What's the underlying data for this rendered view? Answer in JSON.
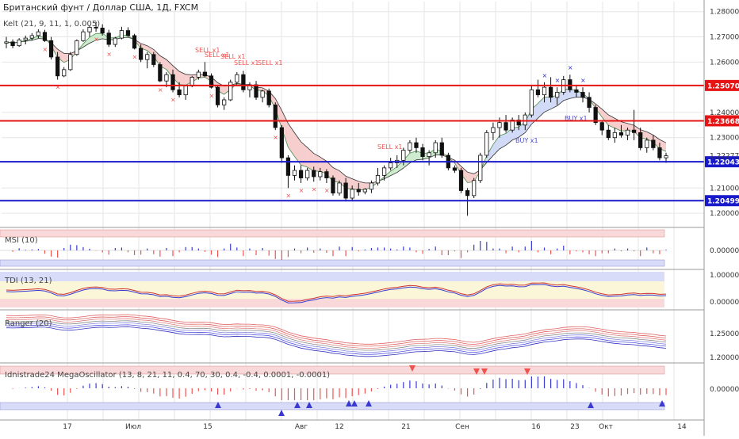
{
  "header": {
    "title": "Британский фунт / Доллар США, 1Д, FXCM",
    "subtitle": "Kelt (21, 9, 11, 1, 0.005)"
  },
  "colors": {
    "bg": "#ffffff",
    "up": "#26a69a",
    "down": "#ef5350",
    "candle": "#111111",
    "red_line": "#e51515",
    "blue_line": "#1919cc",
    "upper_band_fill": "#f4c6c6",
    "lower_band_fill": "#c7e8c7",
    "blue_fill": "#c9d4f4",
    "grid": "#e6e6e6"
  },
  "panes": {
    "msi": {
      "label": "MSI (10)",
      "ticks": [
        "0.00000"
      ]
    },
    "tdi": {
      "label": "TDI (13, 21)",
      "ticks": [
        "1.00000",
        "0.00000"
      ]
    },
    "ranger": {
      "label": "Ranger (20)",
      "ticks": [
        "1.25000",
        "1.20000"
      ]
    },
    "mega": {
      "label": "Idnistrade24 MegaOscillator (13, 8, 21, 11, 0.4, 70, 30, 0.4, -0.4, 0.0001, -0.0001)",
      "ticks": [
        "0.00000"
      ]
    }
  },
  "chart_data": {
    "type": "candlestick",
    "symbol": "GBPUSD",
    "timeframe": "1D",
    "ylim": [
      1.195,
      1.284
    ],
    "y_ticks": [
      1.28,
      1.27,
      1.26,
      1.24,
      1.23,
      1.21,
      1.2
    ],
    "x_ticks": [
      "17",
      "Июл",
      "15",
      "Авг",
      "12",
      "21",
      "Сен",
      "16",
      "23",
      "Окт",
      "14"
    ],
    "levels": [
      {
        "name": "resistance",
        "value": 1.2507,
        "label": "1.25070",
        "color": "red"
      },
      {
        "name": "resistance",
        "value": 1.23668,
        "label": "1.23668",
        "color": "red"
      },
      {
        "name": "support",
        "value": 1.22043,
        "label": "1.22043",
        "color": "blue"
      },
      {
        "name": "support",
        "value": 1.20499,
        "label": "1.20499",
        "color": "blue"
      }
    ],
    "last_price": {
      "value": 1.22277,
      "label": "1.22277"
    },
    "ohlc": [
      [
        1.2675,
        1.27,
        1.2655,
        1.268
      ],
      [
        1.268,
        1.269,
        1.2655,
        1.2665
      ],
      [
        1.2665,
        1.2695,
        1.266,
        1.2688
      ],
      [
        1.2688,
        1.2705,
        1.267,
        1.2695
      ],
      [
        1.2695,
        1.2715,
        1.2685,
        1.2705
      ],
      [
        1.2705,
        1.273,
        1.2695,
        1.272
      ],
      [
        1.2718,
        1.2728,
        1.268,
        1.2685
      ],
      [
        1.2685,
        1.27,
        1.261,
        1.262
      ],
      [
        1.262,
        1.264,
        1.253,
        1.2545
      ],
      [
        1.2545,
        1.258,
        1.254,
        1.257
      ],
      [
        1.257,
        1.264,
        1.2565,
        1.263
      ],
      [
        1.263,
        1.269,
        1.2625,
        1.2685
      ],
      [
        1.2685,
        1.273,
        1.268,
        1.272
      ],
      [
        1.272,
        1.2745,
        1.27,
        1.2738
      ],
      [
        1.2738,
        1.276,
        1.272,
        1.2735
      ],
      [
        1.2735,
        1.275,
        1.2705,
        1.2715
      ],
      [
        1.2715,
        1.2728,
        1.266,
        1.267
      ],
      [
        1.267,
        1.27,
        1.266,
        1.2695
      ],
      [
        1.2695,
        1.274,
        1.269,
        1.2725
      ],
      [
        1.2725,
        1.2738,
        1.27,
        1.2705
      ],
      [
        1.2705,
        1.2712,
        1.265,
        1.2655
      ],
      [
        1.2655,
        1.267,
        1.26,
        1.261
      ],
      [
        1.261,
        1.264,
        1.2575,
        1.263
      ],
      [
        1.263,
        1.264,
        1.258,
        1.259
      ],
      [
        1.259,
        1.26,
        1.252,
        1.2525
      ],
      [
        1.2525,
        1.256,
        1.25,
        1.255
      ],
      [
        1.255,
        1.257,
        1.248,
        1.249
      ],
      [
        1.249,
        1.252,
        1.246,
        1.247
      ],
      [
        1.247,
        1.251,
        1.245,
        1.2505
      ],
      [
        1.2505,
        1.2545,
        1.25,
        1.254
      ],
      [
        1.254,
        1.257,
        1.253,
        1.256
      ],
      [
        1.256,
        1.26,
        1.254,
        1.2545
      ],
      [
        1.2545,
        1.2555,
        1.2495,
        1.25
      ],
      [
        1.25,
        1.251,
        1.242,
        1.243
      ],
      [
        1.243,
        1.246,
        1.241,
        1.245
      ],
      [
        1.245,
        1.253,
        1.2445,
        1.252
      ],
      [
        1.252,
        1.256,
        1.2505,
        1.255
      ],
      [
        1.255,
        1.2565,
        1.248,
        1.249
      ],
      [
        1.249,
        1.252,
        1.246,
        1.251
      ],
      [
        1.251,
        1.2525,
        1.245,
        1.246
      ],
      [
        1.246,
        1.249,
        1.244,
        1.2485
      ],
      [
        1.2485,
        1.2495,
        1.242,
        1.243
      ],
      [
        1.243,
        1.244,
        1.233,
        1.234
      ],
      [
        1.234,
        1.235,
        1.22,
        1.222
      ],
      [
        1.222,
        1.223,
        1.21,
        1.215
      ],
      [
        1.215,
        1.219,
        1.213,
        1.217
      ],
      [
        1.217,
        1.219,
        1.212,
        1.214
      ],
      [
        1.214,
        1.218,
        1.213,
        1.217
      ],
      [
        1.217,
        1.2185,
        1.2125,
        1.2145
      ],
      [
        1.2145,
        1.218,
        1.213,
        1.2165
      ],
      [
        1.2165,
        1.2175,
        1.212,
        1.214
      ],
      [
        1.214,
        1.215,
        1.207,
        1.208
      ],
      [
        1.208,
        1.213,
        1.207,
        1.212
      ],
      [
        1.212,
        1.214,
        1.205,
        1.206
      ],
      [
        1.206,
        1.211,
        1.205,
        1.2095
      ],
      [
        1.2095,
        1.212,
        1.207,
        1.2085
      ],
      [
        1.2085,
        1.21,
        1.2075,
        1.2095
      ],
      [
        1.2095,
        1.213,
        1.208,
        1.212
      ],
      [
        1.212,
        1.218,
        1.211,
        1.215
      ],
      [
        1.215,
        1.219,
        1.213,
        1.218
      ],
      [
        1.218,
        1.222,
        1.217,
        1.22
      ],
      [
        1.22,
        1.223,
        1.218,
        1.221
      ],
      [
        1.221,
        1.226,
        1.219,
        1.225
      ],
      [
        1.225,
        1.229,
        1.224,
        1.228
      ],
      [
        1.228,
        1.23,
        1.224,
        1.226
      ],
      [
        1.226,
        1.2275,
        1.221,
        1.2225
      ],
      [
        1.2225,
        1.225,
        1.219,
        1.224
      ],
      [
        1.224,
        1.229,
        1.222,
        1.228
      ],
      [
        1.228,
        1.23,
        1.222,
        1.223
      ],
      [
        1.223,
        1.224,
        1.217,
        1.218
      ],
      [
        1.218,
        1.219,
        1.216,
        1.217
      ],
      [
        1.217,
        1.218,
        1.208,
        1.209
      ],
      [
        1.209,
        1.21,
        1.199,
        1.207
      ],
      [
        1.207,
        1.214,
        1.206,
        1.213
      ],
      [
        1.213,
        1.224,
        1.212,
        1.223
      ],
      [
        1.223,
        1.233,
        1.222,
        1.232
      ],
      [
        1.232,
        1.236,
        1.229,
        1.234
      ],
      [
        1.234,
        1.238,
        1.23,
        1.236
      ],
      [
        1.236,
        1.239,
        1.232,
        1.233
      ],
      [
        1.233,
        1.238,
        1.232,
        1.237
      ],
      [
        1.237,
        1.239,
        1.233,
        1.235
      ],
      [
        1.235,
        1.24,
        1.233,
        1.239
      ],
      [
        1.239,
        1.251,
        1.238,
        1.249
      ],
      [
        1.249,
        1.253,
        1.246,
        1.247
      ],
      [
        1.247,
        1.252,
        1.244,
        1.25
      ],
      [
        1.25,
        1.254,
        1.244,
        1.246
      ],
      [
        1.246,
        1.25,
        1.243,
        1.248
      ],
      [
        1.248,
        1.2545,
        1.247,
        1.253
      ],
      [
        1.253,
        1.255,
        1.248,
        1.249
      ],
      [
        1.249,
        1.251,
        1.246,
        1.248
      ],
      [
        1.248,
        1.25,
        1.244,
        1.246
      ],
      [
        1.246,
        1.248,
        1.24,
        1.242
      ],
      [
        1.242,
        1.243,
        1.235,
        1.236
      ],
      [
        1.236,
        1.237,
        1.231,
        1.233
      ],
      [
        1.233,
        1.235,
        1.229,
        1.23
      ],
      [
        1.23,
        1.234,
        1.228,
        1.232
      ],
      [
        1.232,
        1.235,
        1.23,
        1.231
      ],
      [
        1.231,
        1.234,
        1.229,
        1.233
      ],
      [
        1.233,
        1.241,
        1.229,
        1.232
      ],
      [
        1.232,
        1.234,
        1.225,
        1.226
      ],
      [
        1.226,
        1.23,
        1.224,
        1.229
      ],
      [
        1.229,
        1.231,
        1.225,
        1.226
      ],
      [
        1.226,
        1.228,
        1.221,
        1.222
      ],
      [
        1.222,
        1.224,
        1.22,
        1.2228
      ]
    ],
    "signals_text": [
      "SELL x1",
      "SELL x1",
      "SELL x1",
      "SELL x1",
      "SELL x1",
      "SELL x1",
      "BUY x1",
      "BUY x1"
    ]
  }
}
